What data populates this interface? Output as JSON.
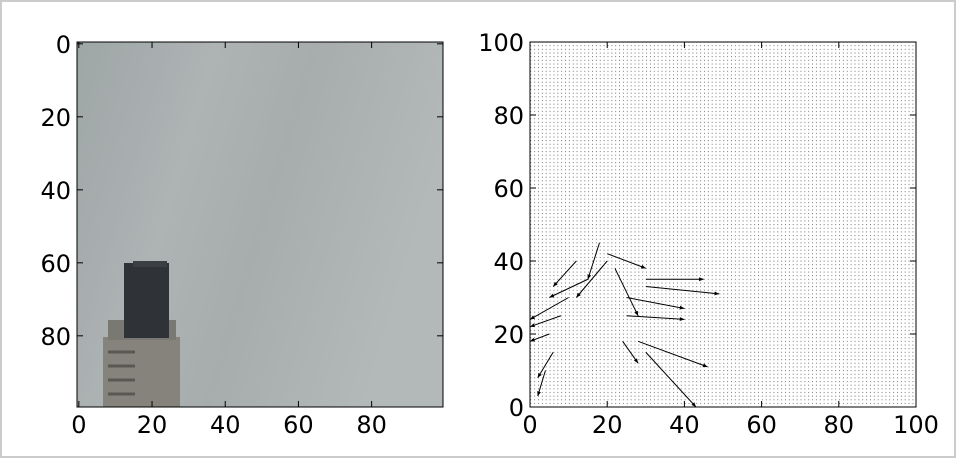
{
  "chart_data": [
    {
      "type": "image",
      "xlim": [
        -0.5,
        99.5
      ],
      "ylim": [
        99.5,
        -0.5
      ],
      "xticks": [
        0,
        20,
        40,
        60,
        80
      ],
      "yticks": [
        0,
        20,
        40,
        60,
        80
      ]
    },
    {
      "type": "quiver",
      "color": "#000000",
      "xlim": [
        0,
        100
      ],
      "ylim": [
        0,
        100
      ],
      "xticks": [
        0,
        20,
        40,
        60,
        80,
        100
      ],
      "yticks": [
        0,
        20,
        40,
        60,
        80,
        100
      ],
      "x": [
        30,
        30,
        25,
        28,
        30,
        18,
        20,
        22,
        15,
        10,
        8,
        5,
        25,
        20,
        12,
        4,
        6,
        24
      ],
      "y": [
        35,
        33,
        30,
        18,
        15,
        45,
        40,
        38,
        35,
        30,
        25,
        20,
        25,
        42,
        40,
        10,
        15,
        18
      ],
      "u": [
        15,
        19,
        15,
        18,
        13,
        -3,
        -8,
        6,
        -10,
        -10,
        -8,
        -5,
        15,
        10,
        -6,
        -2,
        -4,
        4
      ],
      "v": [
        0,
        -2,
        -3,
        -7,
        -15,
        -10,
        -10,
        -13,
        -5,
        -6,
        -3,
        -2,
        -1,
        -4,
        -7,
        -7,
        -7,
        -6
      ]
    }
  ]
}
